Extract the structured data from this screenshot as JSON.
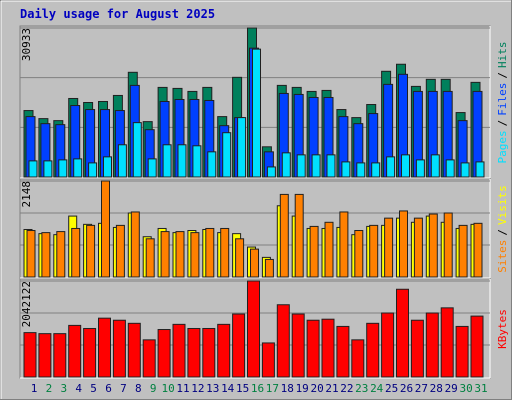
{
  "chart_data": [
    {
      "type": "bar",
      "title": "Daily usage for August 2025",
      "ylim": [
        0,
        30933
      ],
      "yticks": [
        30933
      ],
      "grid": true,
      "legend_separator": "/",
      "series": [
        {
          "name": "Hits",
          "color": "#00805c",
          "values": [
            13794,
            12122,
            11704,
            16302,
            15466,
            15675,
            16929,
            21736,
            11495,
            18601,
            18392,
            17765,
            18601,
            12540,
            20691,
            30933,
            6270,
            19019,
            18601,
            17765,
            17974,
            14003,
            12331,
            15048,
            21945,
            23408,
            18810,
            20273,
            20273,
            13376,
            19646
          ]
        },
        {
          "name": "Files",
          "color": "#0040ff",
          "values": [
            12540,
            11077,
            10868,
            14839,
            14003,
            14003,
            13794,
            19019,
            9823,
            15675,
            16093,
            16093,
            15884,
            10659,
            12331,
            26752,
            5225,
            17347,
            17138,
            16511,
            16511,
            12540,
            11077,
            13167,
            19228,
            21318,
            17765,
            17765,
            17765,
            11704,
            17765
          ]
        },
        {
          "name": "Pages",
          "color": "#00e0ff",
          "values": [
            3344,
            3344,
            3553,
            3762,
            2926,
            4180,
            6688,
            11286,
            3762,
            6688,
            6688,
            6479,
            5225,
            9196,
            12331,
            26543,
            2090,
            5016,
            4598,
            4598,
            4598,
            3135,
            2926,
            2926,
            4180,
            4598,
            3553,
            4598,
            3553,
            2926,
            3135
          ]
        }
      ]
    },
    {
      "type": "bar",
      "ylim": [
        0,
        2148
      ],
      "yticks": [
        2148
      ],
      "grid": true,
      "legend_separator": "/",
      "series": [
        {
          "name": "Visits",
          "color": "#ffff00",
          "values": [
            1063,
            970,
            947,
            1363,
            1178,
            1201,
            1109,
            1432,
            901,
            1086,
            993,
            1040,
            1063,
            993,
            970,
            670,
            439,
            1594,
            1363,
            1086,
            1086,
            1109,
            947,
            1132,
            1155,
            1317,
            1224,
            1363,
            1224,
            1086,
            1178
          ]
        },
        {
          "name": "Sites",
          "color": "#ff8000",
          "values": [
            1040,
            993,
            1016,
            1086,
            1155,
            2148,
            1155,
            1455,
            855,
            1016,
            1016,
            993,
            1086,
            1086,
            855,
            624,
            393,
            1848,
            1848,
            1132,
            1224,
            1455,
            1040,
            1155,
            1317,
            1478,
            1317,
            1409,
            1432,
            1155,
            1201
          ]
        }
      ]
    },
    {
      "type": "bar",
      "ylim": [
        0,
        2042122
      ],
      "yticks": [
        2042122
      ],
      "grid": true,
      "categories": [
        "1",
        "2",
        "3",
        "4",
        "5",
        "6",
        "7",
        "8",
        "9",
        "10",
        "11",
        "12",
        "13",
        "14",
        "15",
        "16",
        "17",
        "18",
        "19",
        "20",
        "21",
        "22",
        "23",
        "24",
        "25",
        "26",
        "27",
        "28",
        "29",
        "30",
        "31"
      ],
      "category_colors": [
        "#000080",
        "#008040",
        "#008040",
        "#000080",
        "#000080",
        "#000080",
        "#000080",
        "#000080",
        "#008040",
        "#008040",
        "#000080",
        "#000080",
        "#000080",
        "#000080",
        "#000080",
        "#008040",
        "#008040",
        "#000080",
        "#000080",
        "#000080",
        "#000080",
        "#000080",
        "#008040",
        "#008040",
        "#000080",
        "#000080",
        "#000080",
        "#000080",
        "#000080",
        "#008040",
        "#008040"
      ],
      "series": [
        {
          "name": "KBytes",
          "color": "#ff0000",
          "values": [
            944194,
            922236,
            922236,
            1097900,
            1032026,
            1251606,
            1207690,
            1141816,
            790488,
            1010068,
            1119858,
            1032026,
            1032026,
            1119858,
            1339438,
            2042122,
            724614,
            1537060,
            1339438,
            1207690,
            1229648,
            1075942,
            790488,
            1141816,
            1361396,
            1866430,
            1207690,
            1361396,
            1471186,
            1075942,
            1295522
          ]
        }
      ]
    }
  ]
}
